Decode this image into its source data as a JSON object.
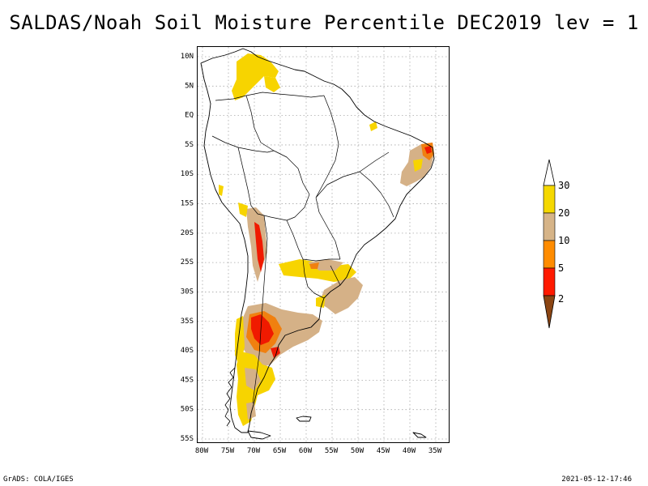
{
  "title": "SALDAS/Noah Soil Moisture Percentile DEC2019 lev = 1",
  "footer": {
    "left": "GrADS: COLA/IGES",
    "right": "2021-05-12-17:46"
  },
  "axes": {
    "lat_labels": [
      "10N",
      "5N",
      "EQ",
      "5S",
      "10S",
      "15S",
      "20S",
      "25S",
      "30S",
      "35S",
      "40S",
      "45S",
      "50S",
      "55S"
    ],
    "lon_labels": [
      "80W",
      "75W",
      "70W",
      "65W",
      "60W",
      "55W",
      "50W",
      "45W",
      "40W",
      "35W"
    ]
  },
  "legend": {
    "labels": [
      "30",
      "20",
      "10",
      "5",
      "2"
    ],
    "colors": {
      "top_arrow": "#ffffff",
      "yellow": "#f5d800",
      "tan": "#d6b488",
      "orange": "#ff8c00",
      "red": "#ff1a00",
      "brown": "#8b4513"
    }
  },
  "map_colors": {
    "yellow": "#f7d400",
    "tan": "#d5b187",
    "orange": "#f08010",
    "red": "#f01a00",
    "coast": "#000000",
    "grid": "#a0a0a0"
  }
}
